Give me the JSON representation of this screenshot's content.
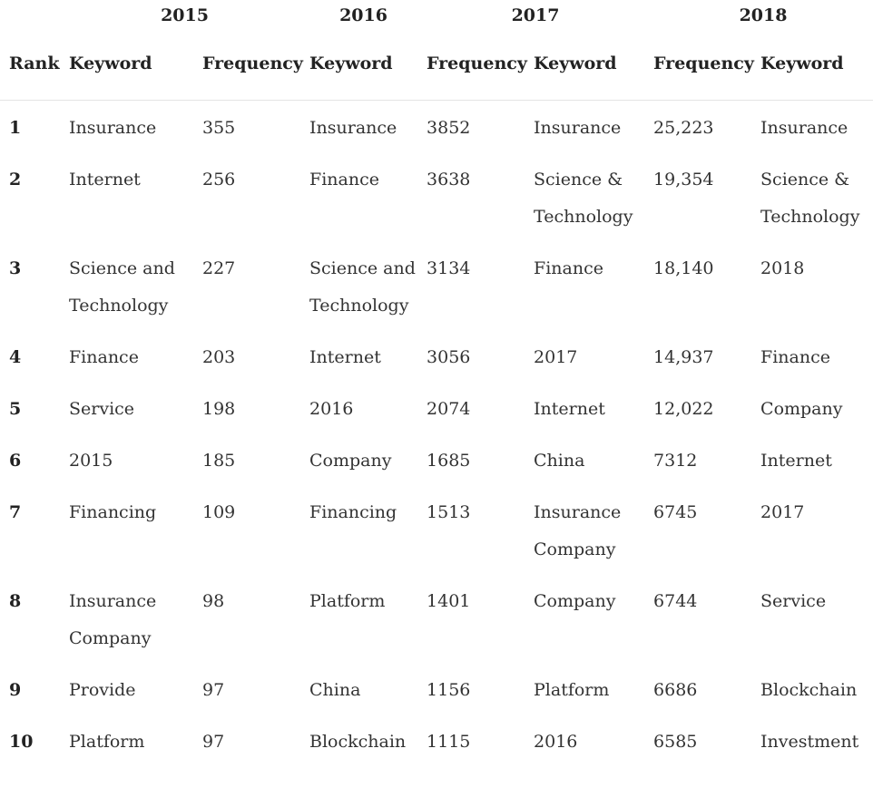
{
  "table": {
    "years": [
      {
        "label": "2015"
      },
      {
        "label": "2016"
      },
      {
        "label": "2017"
      },
      {
        "label": "2018"
      }
    ],
    "headers": {
      "rank": "Rank",
      "keyword": "Keyword",
      "frequency": "Frequency"
    },
    "rows": [
      {
        "rank": "1",
        "kw2015": "Insurance",
        "fr2015": "355",
        "kw2016": "Insurance",
        "fr2016": "3852",
        "kw2017": "Insurance",
        "fr2017": "25,223",
        "kw2018": "Insurance"
      },
      {
        "rank": "2",
        "kw2015": "Internet",
        "fr2015": "256",
        "kw2016": "Finance",
        "fr2016": "3638",
        "kw2017": "Science & Technology",
        "fr2017": "19,354",
        "kw2018": "Science & Technology"
      },
      {
        "rank": "3",
        "kw2015": "Science and Technology",
        "fr2015": "227",
        "kw2016": "Science and Technology",
        "fr2016": "3134",
        "kw2017": "Finance",
        "fr2017": "18,140",
        "kw2018": "2018"
      },
      {
        "rank": "4",
        "kw2015": "Finance",
        "fr2015": "203",
        "kw2016": "Internet",
        "fr2016": "3056",
        "kw2017": "2017",
        "fr2017": "14,937",
        "kw2018": "Finance"
      },
      {
        "rank": "5",
        "kw2015": "Service",
        "fr2015": "198",
        "kw2016": "2016",
        "fr2016": "2074",
        "kw2017": "Internet",
        "fr2017": "12,022",
        "kw2018": "Company"
      },
      {
        "rank": "6",
        "kw2015": "2015",
        "fr2015": "185",
        "kw2016": "Company",
        "fr2016": "1685",
        "kw2017": "China",
        "fr2017": "7312",
        "kw2018": "Internet"
      },
      {
        "rank": "7",
        "kw2015": "Financing",
        "fr2015": "109",
        "kw2016": "Financing",
        "fr2016": "1513",
        "kw2017": "Insurance Company",
        "fr2017": "6745",
        "kw2018": "2017"
      },
      {
        "rank": "8",
        "kw2015": "Insurance Company",
        "fr2015": "98",
        "kw2016": "Platform",
        "fr2016": "1401",
        "kw2017": "Company",
        "fr2017": "6744",
        "kw2018": "Service"
      },
      {
        "rank": "9",
        "kw2015": "Provide",
        "fr2015": "97",
        "kw2016": "China",
        "fr2016": "1156",
        "kw2017": "Platform",
        "fr2017": "6686",
        "kw2018": "Blockchain"
      },
      {
        "rank": "10",
        "kw2015": "Platform",
        "fr2015": "97",
        "kw2016": "Blockchain",
        "fr2016": "1115",
        "kw2017": "2016",
        "fr2017": "6585",
        "kw2018": "Investment"
      }
    ]
  }
}
